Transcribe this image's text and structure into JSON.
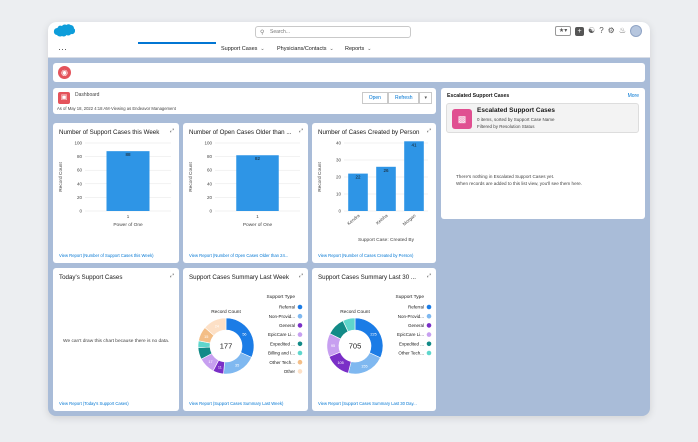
{
  "header": {
    "search_placeholder": "Search...",
    "tabs": [
      {
        "label": "Support Cases"
      },
      {
        "label": "Physicians/Contacts"
      },
      {
        "label": "Reports"
      }
    ]
  },
  "dashboard": {
    "label": "Dashboard",
    "subtitle": "As of May 18, 2022 4:18 AM·Viewing as Endeavor Management",
    "open_label": "Open",
    "refresh_label": "Refresh"
  },
  "charts": [
    {
      "title": "Number of Support Cases this Week",
      "link": "View Report (Number of Support Cases this Week)",
      "chart_data": {
        "type": "bar",
        "categories": [
          "1"
        ],
        "values": [
          88
        ],
        "xlabel": "Power of One",
        "ylabel": "Record Count",
        "ylim": [
          0,
          100
        ],
        "yticks": [
          0,
          20,
          40,
          60,
          80,
          100
        ]
      }
    },
    {
      "title": "Number of Open Cases Older than ...",
      "link": "View Report (Number of Open Cases Older than 24...",
      "chart_data": {
        "type": "bar",
        "categories": [
          "1"
        ],
        "values": [
          82
        ],
        "xlabel": "Power of One",
        "ylabel": "Record Count",
        "ylim": [
          0,
          100
        ],
        "yticks": [
          0,
          20,
          40,
          60,
          80,
          100
        ]
      }
    },
    {
      "title": "Number of Cases Created by Person",
      "link": "View Report (Number of Cases Created by Person)",
      "chart_data": {
        "type": "bar",
        "categories": [
          "Kendra",
          "Keisha",
          "Morgan"
        ],
        "values": [
          22,
          26,
          41
        ],
        "xlabel": "Support Case: Created By",
        "ylabel": "Record Count",
        "ylim": [
          0,
          40
        ],
        "yticks": [
          0,
          10,
          20,
          30,
          40
        ]
      }
    }
  ],
  "today": {
    "title": "Today's Support Cases",
    "message": "We can't draw this chart because there is no data.",
    "link": "View Report (Today's Support Cases)"
  },
  "donuts": [
    {
      "title": "Support Cases Summary Last Week",
      "link": "View Report (Support Cases Summary Last Week)",
      "chart_data": {
        "type": "pie",
        "total": "177",
        "record_label": "Record Count",
        "legend_title": "Support Type",
        "legend": [
          "Referral",
          "Non-Provid...",
          "General",
          "EpicCare Li...",
          "Expedited ...",
          "Billing and I...",
          "Other Tech...",
          "Other"
        ],
        "values": [
          56,
          35,
          11,
          17,
          12,
          7,
          15,
          24
        ],
        "labels": [
          "56",
          "35",
          "11",
          "17",
          "",
          "",
          "15",
          "24"
        ],
        "colors": [
          "#1b7ce6",
          "#7fb8f0",
          "#7a2fc7",
          "#c79ff0",
          "#128a87",
          "#5fd6cc",
          "#f3be87",
          "#fde0c6"
        ]
      }
    },
    {
      "title": "Support Cases Summary Last 30 ...",
      "link": "View Report (Support Cases Summary Last 30 Day...",
      "chart_data": {
        "type": "pie",
        "total": "705",
        "record_label": "Record Count",
        "legend_title": "Support Type",
        "legend": [
          "Referral",
          "Non-Provid...",
          "General",
          "EpicCare Li...",
          "Expedited ...",
          "Other Tech..."
        ],
        "values": [
          225,
          155,
          105,
          95,
          75,
          50
        ],
        "labels": [
          "225",
          "155",
          "105",
          "95",
          "",
          ""
        ],
        "colors": [
          "#1b7ce6",
          "#7fb8f0",
          "#7a2fc7",
          "#c79ff0",
          "#128a87",
          "#5fd6cc"
        ]
      }
    }
  ],
  "escalated": {
    "panel_title": "Escalated Support Cases",
    "more": "More",
    "heading": "Escalated Support Cases",
    "line1": "0 items, sorted by Support Case Name",
    "line2": "Filtered by Resolution Status",
    "empty1": "There's nothing in Escalated Support Cases yet.",
    "empty2": "When records are added to this list view, you'll see them here."
  }
}
